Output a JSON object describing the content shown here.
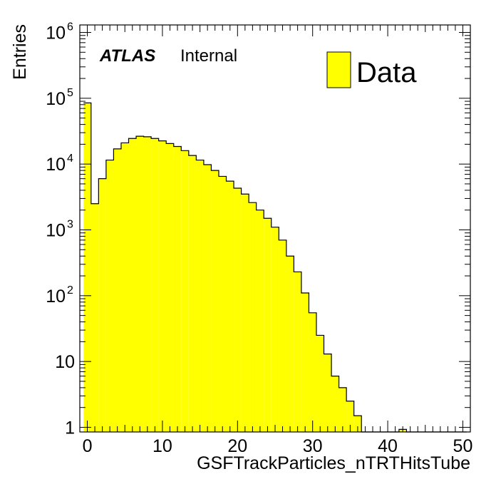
{
  "chart_data": {
    "type": "bar",
    "style": "histogram",
    "xlabel": "GSFTrackParticles_nTRTHitsTube",
    "ylabel": "Entries",
    "xlim": [
      -1,
      51
    ],
    "ylim": [
      0.85,
      1300000
    ],
    "yscale": "log",
    "grid": false,
    "x_ticks": [
      "0",
      "10",
      "20",
      "30",
      "40",
      "50"
    ],
    "y_ticks": [
      {
        "base": "1",
        "exp": ""
      },
      {
        "base": "10",
        "exp": ""
      },
      {
        "base": "10",
        "exp": "2"
      },
      {
        "base": "10",
        "exp": "3"
      },
      {
        "base": "10",
        "exp": "4"
      },
      {
        "base": "10",
        "exp": "5"
      },
      {
        "base": "10",
        "exp": "6"
      }
    ],
    "bin_width": 1,
    "bin_edges_start": -0.5,
    "fill_color": "#ffff00",
    "line_color": "#000000",
    "values": [
      85000,
      2500,
      6000,
      11500,
      17000,
      21000,
      24500,
      26500,
      26000,
      24500,
      22500,
      20500,
      18500,
      16000,
      13500,
      11500,
      9800,
      8000,
      6500,
      5500,
      4300,
      3500,
      2600,
      2000,
      1500,
      1100,
      700,
      400,
      230,
      110,
      55,
      25,
      13,
      6,
      4,
      2.5,
      1.5,
      0,
      0,
      0,
      0,
      0,
      0.93,
      0,
      0,
      0,
      0,
      0,
      0,
      0,
      0
    ],
    "legend": {
      "position": "top-right",
      "entries": [
        {
          "name": "Data",
          "color": "#ffff00"
        }
      ]
    },
    "annotation": {
      "bold_italic": "ATLAS",
      "text": "Internal"
    }
  }
}
